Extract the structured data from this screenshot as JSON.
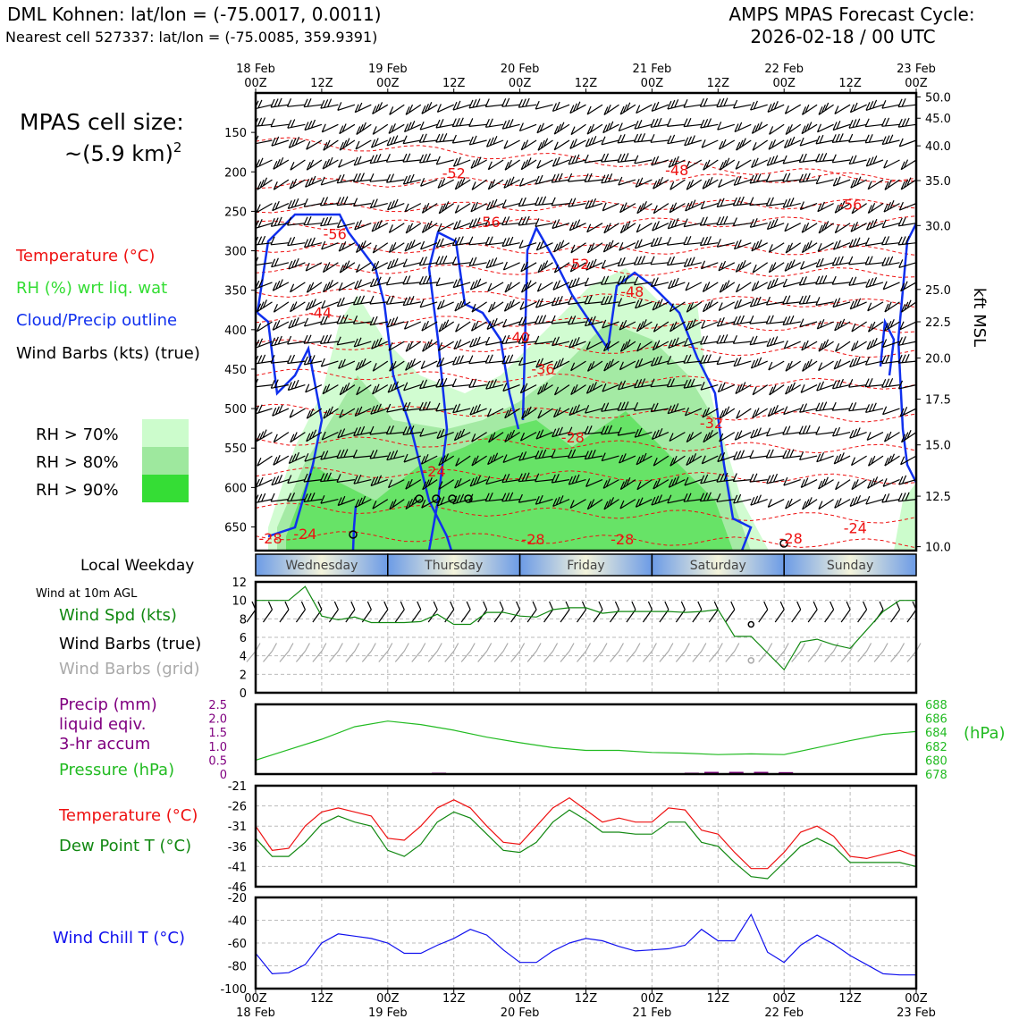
{
  "header": {
    "station_line": "DML Kohnen: lat/lon = (-75.0017, 0.0011)",
    "cell_line": "Nearest cell 527337: lat/lon = (-75.0085, 359.9391)",
    "forecast_title": "AMPS MPAS Forecast Cycle:",
    "forecast_cycle": "2026-02-18 / 00 UTC"
  },
  "cell_size": {
    "label": "MPAS cell size:",
    "value": "~(5.9 km)",
    "exponent": "2"
  },
  "legend": {
    "temperature": "Temperature (°C)",
    "rh": "RH (%) wrt liq. wat",
    "cloud": "Cloud/Precip outline",
    "barbs": "Wind Barbs (kts) (true)",
    "rh70": "RH > 70%",
    "rh80": "RH > 80%",
    "rh90": "RH > 90%"
  },
  "colors": {
    "temp": "#ee1111",
    "rh70": "#ccfccc",
    "rh80": "#9ee89e",
    "rh90": "#35dd35",
    "cloud": "#1030ee",
    "precip": "#800080",
    "pressure": "#22bb22",
    "dewpoint": "#118811",
    "windchill": "#1111ee",
    "gridbarb": "#aaaaaa",
    "windspd": "#118811"
  },
  "chart_data": [
    {
      "type": "time-height cross-section",
      "time_ticks": [
        "00Z",
        "12Z",
        "00Z",
        "12Z",
        "00Z",
        "12Z",
        "00Z",
        "12Z",
        "00Z",
        "12Z",
        "00Z"
      ],
      "date_labels": [
        "18 Feb",
        "19 Feb",
        "20 Feb",
        "21 Feb",
        "22 Feb",
        "23 Feb"
      ],
      "ylabel_right": "kft MSL",
      "pressure_ticks": [
        "150",
        "200",
        "250",
        "300",
        "350",
        "400",
        "450",
        "500",
        "550",
        "600",
        "650"
      ],
      "pressure_values": [
        150,
        200,
        250,
        300,
        350,
        400,
        450,
        500,
        550,
        600,
        650
      ],
      "p_range": [
        100,
        680
      ],
      "height_ticks": [
        "50.0",
        "45.0",
        "40.0",
        "35.0",
        "30.0",
        "25.0",
        "22.5",
        "20.0",
        "17.5",
        "15.0",
        "12.5",
        "10.0"
      ],
      "height_pressures": [
        105,
        132,
        167,
        211,
        268,
        349,
        390,
        436,
        488,
        546,
        611,
        675
      ],
      "temp_contour_labels": [
        {
          "text": "-56",
          "t": 1.6,
          "p": 285
        },
        {
          "text": "-52",
          "t": 4.0,
          "p": 208
        },
        {
          "text": "-48",
          "t": 8.5,
          "p": 204
        },
        {
          "text": "-56",
          "t": 4.7,
          "p": 270
        },
        {
          "text": "-56",
          "t": 12.0,
          "p": 248
        },
        {
          "text": "-52",
          "t": 6.5,
          "p": 323
        },
        {
          "text": "-48",
          "t": 7.6,
          "p": 358
        },
        {
          "text": "-44",
          "t": 1.3,
          "p": 385
        },
        {
          "text": "-40",
          "t": 5.3,
          "p": 416
        },
        {
          "text": "-36",
          "t": 5.8,
          "p": 456
        },
        {
          "text": "-32",
          "t": 9.2,
          "p": 525
        },
        {
          "text": "-28",
          "t": 6.4,
          "p": 543
        },
        {
          "text": "-24",
          "t": 3.6,
          "p": 586
        },
        {
          "text": "-28",
          "t": 0.3,
          "p": 671
        },
        {
          "text": "-24",
          "t": 1.0,
          "p": 665
        },
        {
          "text": "-28",
          "t": 5.6,
          "p": 672
        },
        {
          "text": "-28",
          "t": 7.4,
          "p": 672
        },
        {
          "text": "-28",
          "t": 10.8,
          "p": 671
        },
        {
          "text": "-24",
          "t": 12.1,
          "p": 658
        }
      ],
      "weekdays": [
        "Wednesday",
        "Thursday",
        "Friday",
        "Saturday",
        "Sunday"
      ],
      "weekday_title": "Local Weekday"
    },
    {
      "type": "line",
      "title": "Wind at 10m AGL",
      "labels": [
        "Wind Spd (kts)",
        "Wind Barbs (true)",
        "Wind Barbs (grid)"
      ],
      "y_ticks": [
        "0",
        "2",
        "4",
        "6",
        "8",
        "10",
        "12"
      ],
      "ylim": [
        0,
        12
      ],
      "x": [
        0,
        1,
        2,
        3,
        4,
        5,
        6,
        7,
        8,
        9,
        10,
        11,
        12,
        13,
        14,
        15,
        16,
        17,
        18,
        19,
        20,
        21,
        22,
        23,
        24,
        25,
        26,
        27,
        28,
        29,
        30,
        31,
        32,
        33,
        34,
        35,
        36,
        37,
        38,
        39,
        40
      ],
      "series": [
        {
          "name": "Wind Spd (kts)",
          "values": [
            10,
            10,
            10,
            11.5,
            8.3,
            7.9,
            8.2,
            7.6,
            7.6,
            7.6,
            7.7,
            8.5,
            7.4,
            7.4,
            8.7,
            8.7,
            8.3,
            8.2,
            9,
            9.2,
            9.2,
            8.6,
            8.8,
            8.8,
            8.8,
            8.8,
            8.7,
            8.8,
            9,
            6.1,
            6.1,
            4.3,
            2.5,
            5.5,
            5.8,
            5.2,
            4.8,
            6.8,
            8.8,
            10,
            10
          ]
        }
      ]
    },
    {
      "type": "line",
      "labels": [
        "Precip (mm)",
        "liquid eqiv.",
        "3-hr accum",
        "Pressure (hPa)"
      ],
      "units_right": "(hPa)",
      "precip_ticks": [
        "0",
        "0.5",
        "1.0",
        "1.5",
        "2.0",
        "2.5"
      ],
      "precip_ylim": [
        0,
        2.5
      ],
      "pressure_ticks": [
        "678",
        "680",
        "682",
        "684",
        "686",
        "688"
      ],
      "pressure_ylim": [
        678,
        688
      ],
      "x": [
        0,
        2,
        4,
        6,
        8,
        10,
        12,
        14,
        16,
        18,
        20,
        22,
        24,
        26,
        28,
        30,
        32,
        34,
        36,
        38,
        40
      ],
      "series": [
        {
          "name": "Pressure (hPa)",
          "values": [
            680,
            681.5,
            683,
            684.8,
            685.6,
            685.1,
            684.3,
            683.3,
            682.5,
            681.8,
            681.4,
            681.4,
            681.1,
            681.0,
            680.8,
            680.9,
            680.8,
            681.8,
            682.8,
            683.7,
            684.1
          ]
        },
        {
          "name": "Precip (mm)",
          "bars": [
            {
              "x": 3.7,
              "v": 0.05
            },
            {
              "x": 8.8,
              "v": 0.05
            },
            {
              "x": 9.2,
              "v": 0.08
            },
            {
              "x": 9.7,
              "v": 0.08
            },
            {
              "x": 10.2,
              "v": 0.08
            },
            {
              "x": 10.7,
              "v": 0.07
            },
            {
              "x": 11.2,
              "v": 0.03
            }
          ]
        }
      ]
    },
    {
      "type": "line",
      "labels": [
        "Temperature (°C)",
        "Dew Point T (°C)"
      ],
      "y_ticks": [
        "-21",
        "-26",
        "-31",
        "-36",
        "-41",
        "-46"
      ],
      "ylim": [
        -46,
        -21
      ],
      "x": [
        0,
        1,
        2,
        3,
        4,
        5,
        6,
        7,
        8,
        9,
        10,
        11,
        12,
        13,
        14,
        15,
        16,
        17,
        18,
        19,
        20,
        21,
        22,
        23,
        24,
        25,
        26,
        27,
        28,
        29,
        30,
        31,
        32,
        33,
        34,
        35,
        36,
        37,
        38,
        39,
        40
      ],
      "series": [
        {
          "name": "Temperature (°C)",
          "values": [
            -31,
            -37,
            -36.5,
            -31,
            -27.5,
            -26.5,
            -27.5,
            -28.5,
            -34,
            -34.5,
            -31,
            -26.5,
            -24.5,
            -26.5,
            -31,
            -35,
            -35.5,
            -31,
            -26.5,
            -24,
            -27,
            -30,
            -29,
            -30,
            -30,
            -26.5,
            -27,
            -32,
            -33,
            -37.5,
            -41.5,
            -41.5,
            -37.5,
            -32.5,
            -31,
            -33.5,
            -38.5,
            -39,
            -38,
            -37,
            -38.5
          ]
        },
        {
          "name": "Dew Point T (°C)",
          "values": [
            -34,
            -38.5,
            -38.5,
            -35,
            -30.5,
            -28.5,
            -30,
            -31,
            -37,
            -38.5,
            -35.5,
            -30,
            -27.5,
            -29,
            -33,
            -37,
            -37.5,
            -35,
            -30,
            -27,
            -29.5,
            -32.5,
            -32.5,
            -33,
            -33,
            -30,
            -30,
            -35,
            -36,
            -40,
            -43.5,
            -44,
            -40,
            -36,
            -34,
            -36,
            -40,
            -40,
            -40,
            -40,
            -41
          ]
        }
      ]
    },
    {
      "type": "line",
      "labels": [
        "Wind Chill T (°C)"
      ],
      "y_ticks": [
        "-20",
        "-40",
        "-60",
        "-80",
        "-100"
      ],
      "ylim": [
        -100,
        -20
      ],
      "x": [
        0,
        1,
        2,
        3,
        4,
        5,
        6,
        7,
        8,
        9,
        10,
        11,
        12,
        13,
        14,
        15,
        16,
        17,
        18,
        19,
        20,
        21,
        22,
        23,
        24,
        25,
        26,
        27,
        28,
        29,
        30,
        31,
        32,
        33,
        34,
        35,
        36,
        37,
        38,
        39,
        40
      ],
      "series": [
        {
          "name": "Wind Chill T (°C)",
          "values": [
            -69,
            -87,
            -86,
            -79,
            -60,
            -52,
            -54,
            -56,
            -60,
            -69,
            -69,
            -62,
            -56,
            -48,
            -53,
            -66,
            -77,
            -77,
            -67,
            -60,
            -56,
            -58,
            -63,
            -67,
            -66,
            -65,
            -62,
            -48,
            -58,
            -58,
            -35,
            -68,
            -77,
            -62,
            -53,
            -61,
            -71,
            -79,
            -87,
            -88,
            -88
          ]
        }
      ]
    }
  ]
}
